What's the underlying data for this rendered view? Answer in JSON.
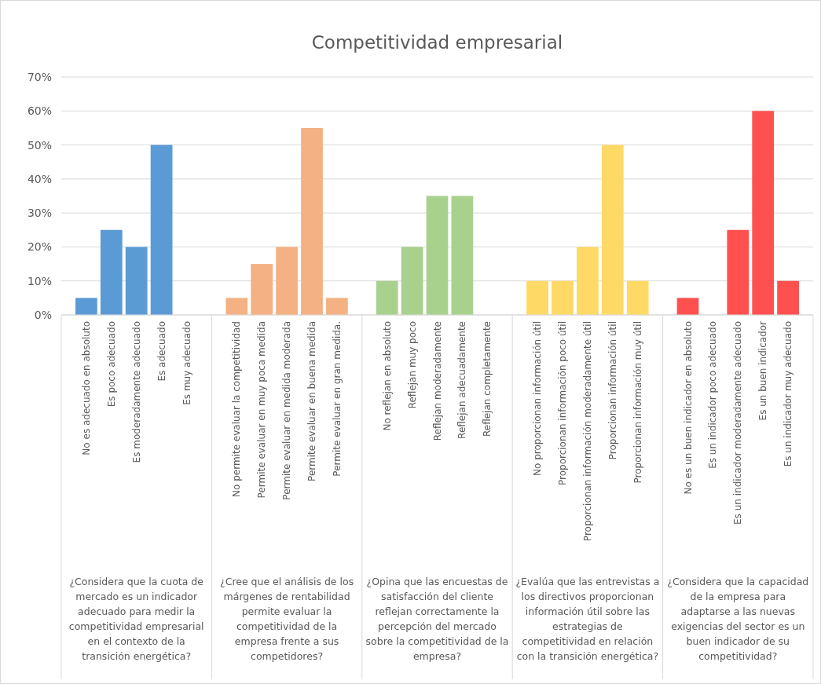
{
  "chart_data": {
    "type": "bar",
    "title": "Competitividad empresarial",
    "categories": [
      "No es adecuado en absoluto",
      "Es poco adecuado",
      "Es moderadamente adecuado",
      "Es adecuado",
      "Es muy adecuado",
      "No permite evaluar la competitividad",
      "Permite evaluar en muy poca medida",
      "Permite evaluar en medida moderada",
      "Permite evaluar en buena medida",
      "Permite evaluar en gran medida.",
      "No reflejan en absoluto",
      "Reflejan muy poco",
      "Reflejan moderadamente",
      "Reflejan adecuadamente",
      "Reflejan completamente",
      "No proporcionan información útil",
      "Proporcionan información poco útil",
      "Proporcionan información moderadamente útil",
      "Proporcionan información útil",
      "Proporcionan información muy útil",
      "No es un buen indicador en absoluto",
      "Es un indicador poco adecuado",
      "Es un indicador moderadamente adecuado",
      "Es un buen indicador",
      "Es un indicador muy adecuado"
    ],
    "values": [
      5,
      25,
      20,
      50,
      0,
      5,
      15,
      20,
      55,
      5,
      10,
      20,
      35,
      35,
      0,
      10,
      10,
      20,
      50,
      10,
      5,
      0,
      25,
      60,
      10
    ],
    "colors": [
      "#5b9bd5",
      "#5b9bd5",
      "#5b9bd5",
      "#5b9bd5",
      "#5b9bd5",
      "#f4b183",
      "#f4b183",
      "#f4b183",
      "#f4b183",
      "#f4b183",
      "#a9d18e",
      "#a9d18e",
      "#a9d18e",
      "#a9d18e",
      "#a9d18e",
      "#ffd966",
      "#ffd966",
      "#ffd966",
      "#ffd966",
      "#ffd966",
      "#ff5050",
      "#ff5050",
      "#ff5050",
      "#ff5050",
      "#ff5050"
    ],
    "annotations": [
      "¿Considera que la cuota de mercado es un indicador adecuado para medir la competitividad empresarial en el contexto de la transición energética?",
      "¿Cree que el análisis de los márgenes de rentabilidad permite evaluar la competitividad de la empresa frente a sus competidores?",
      "¿Opina que las encuestas de satisfacción del cliente reflejan correctamente la percepción del mercado sobre la competitividad de la empresa?",
      "¿Evalúa que las entrevistas a los directivos proporcionan información útil sobre las estrategias de competitividad en relación con la transición energética?",
      "¿Considera que la capacidad de la empresa para adaptarse a las nuevas exigencias del sector es un buen indicador de su competitividad?"
    ],
    "ylim": [
      0,
      70
    ],
    "yticks": [
      {
        "value": 0,
        "label": "0%"
      },
      {
        "value": 10,
        "label": "10%"
      },
      {
        "value": 20,
        "label": "20%"
      },
      {
        "value": 30,
        "label": "30%"
      },
      {
        "value": 40,
        "label": "40%"
      },
      {
        "value": 50,
        "label": "50%"
      },
      {
        "value": 60,
        "label": "60%"
      },
      {
        "value": 70,
        "label": "70%"
      }
    ],
    "grid": "y"
  }
}
